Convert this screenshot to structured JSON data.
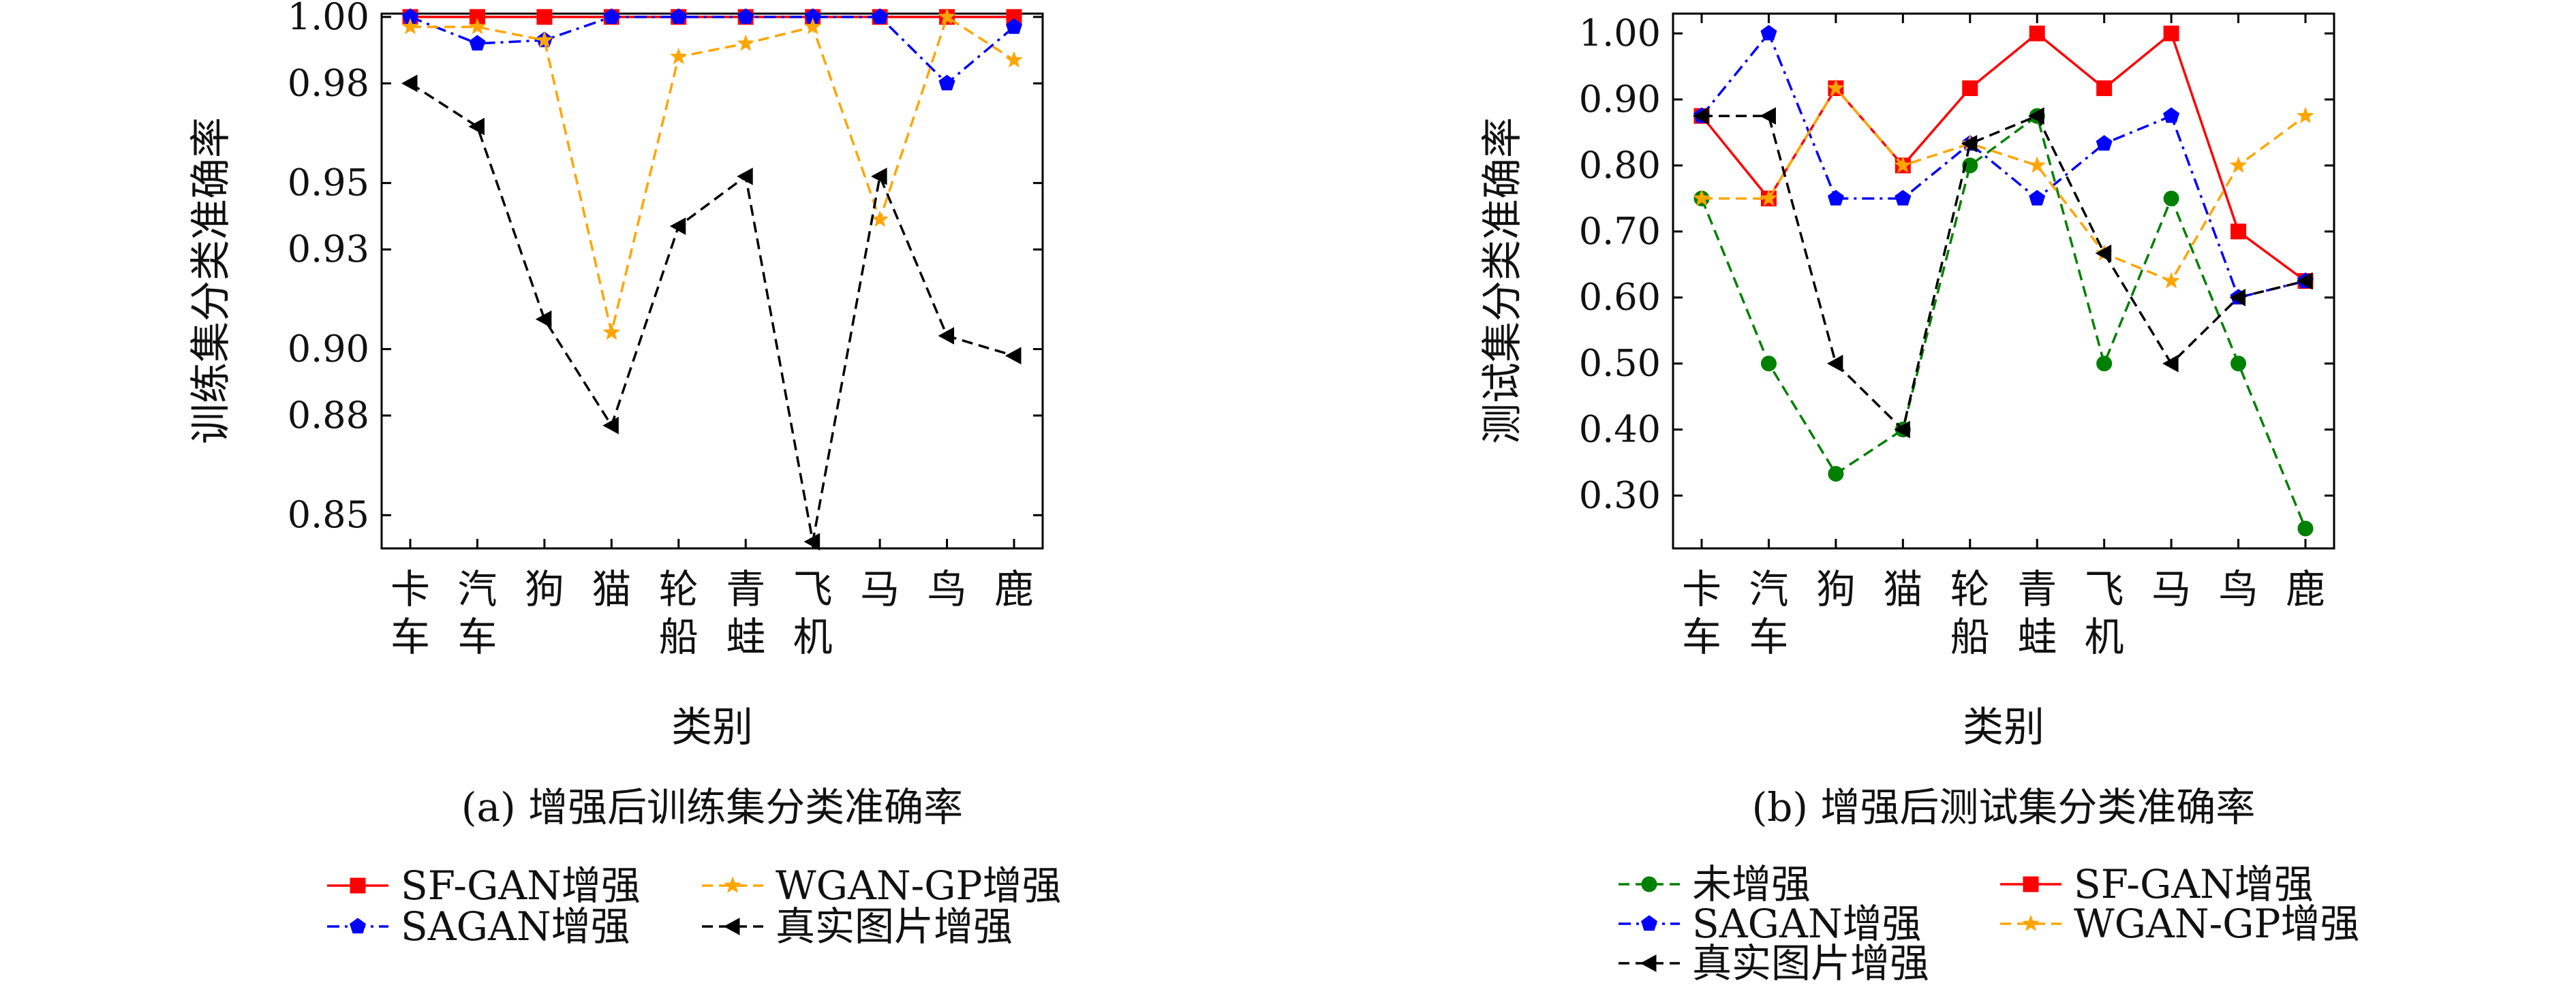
{
  "chart_data": [
    {
      "type": "line",
      "caption": "(a) 增强后训练集分类准确率",
      "xlabel": "类别",
      "ylabel": "训练集分类准确率",
      "categories": [
        "卡车",
        "汽车",
        "狗",
        "猫",
        "轮船",
        "青蛙",
        "飞机",
        "马",
        "鸟",
        "鹿"
      ],
      "ylim": [
        0.84,
        1.001
      ],
      "yticks": [
        0.85,
        0.88,
        0.9,
        0.93,
        0.95,
        0.98,
        1.0
      ],
      "ytick_labels": [
        "0.85",
        "0.88",
        "0.90",
        "0.93",
        "0.95",
        "0.98",
        "1.00"
      ],
      "grid": false,
      "series": [
        {
          "name": "SF-GAN增强",
          "color": "#ff0000",
          "marker": "square",
          "dash": "solid",
          "values": [
            1.0,
            1.0,
            1.0,
            1.0,
            1.0,
            1.0,
            1.0,
            1.0,
            1.0,
            1.0
          ]
        },
        {
          "name": "SAGAN增强",
          "color": "#0000ff",
          "marker": "pentagon",
          "dash": "dashdot",
          "values": [
            1.0,
            0.992,
            0.993,
            1.0,
            1.0,
            1.0,
            1.0,
            1.0,
            0.98,
            0.997
          ]
        },
        {
          "name": "WGAN-GP增强",
          "color": "#ffa500",
          "marker": "star",
          "dash": "dashed",
          "values": [
            0.997,
            0.997,
            0.993,
            0.905,
            0.988,
            0.992,
            0.997,
            0.939,
            1.0,
            0.987
          ]
        },
        {
          "name": "真实图片增强",
          "color": "#000000",
          "marker": "triangle-left",
          "dash": "dashed",
          "values": [
            0.98,
            0.967,
            0.909,
            0.877,
            0.937,
            0.952,
            0.842,
            0.952,
            0.904,
            0.898
          ]
        }
      ],
      "legend": {
        "placement": "bottom",
        "order": [
          "SF-GAN增强",
          "WGAN-GP增强",
          "SAGAN增强",
          "真实图片增强"
        ]
      }
    },
    {
      "type": "line",
      "caption": "(b) 增强后测试集分类准确率",
      "xlabel": "类别",
      "ylabel": "测试集分类准确率",
      "categories": [
        "卡车",
        "汽车",
        "狗",
        "猫",
        "轮船",
        "青蛙",
        "飞机",
        "马",
        "鸟",
        "鹿"
      ],
      "ylim": [
        0.22,
        1.03
      ],
      "yticks": [
        0.3,
        0.4,
        0.5,
        0.6,
        0.7,
        0.8,
        0.9,
        1.0
      ],
      "ytick_labels": [
        "0.30",
        "0.40",
        "0.50",
        "0.60",
        "0.70",
        "0.80",
        "0.90",
        "1.00"
      ],
      "grid": false,
      "series": [
        {
          "name": "未增强",
          "color": "#008000",
          "marker": "circle",
          "dash": "dashed",
          "values": [
            0.75,
            0.5,
            0.333,
            0.4,
            0.8,
            0.875,
            0.5,
            0.75,
            0.5,
            0.25
          ]
        },
        {
          "name": "SF-GAN增强",
          "color": "#ff0000",
          "marker": "square",
          "dash": "solid",
          "values": [
            0.875,
            0.75,
            0.917,
            0.8,
            0.917,
            1.0,
            0.917,
            1.0,
            0.7,
            0.625
          ]
        },
        {
          "name": "SAGAN增强",
          "color": "#0000ff",
          "marker": "pentagon",
          "dash": "dashdot",
          "values": [
            0.875,
            1.0,
            0.75,
            0.75,
            0.833,
            0.75,
            0.833,
            0.875,
            0.6,
            0.625
          ]
        },
        {
          "name": "WGAN-GP增强",
          "color": "#ffa500",
          "marker": "star",
          "dash": "dashed",
          "values": [
            0.75,
            0.75,
            0.917,
            0.8,
            0.833,
            0.8,
            0.667,
            0.625,
            0.8,
            0.875
          ]
        },
        {
          "name": "真实图片增强",
          "color": "#000000",
          "marker": "triangle-left",
          "dash": "dashed",
          "values": [
            0.875,
            0.875,
            0.5,
            0.4,
            0.833,
            0.875,
            0.667,
            0.5,
            0.6,
            0.625
          ]
        }
      ],
      "legend": {
        "placement": "bottom",
        "order": [
          "未增强",
          "SF-GAN增强",
          "SAGAN增强",
          "WGAN-GP增强",
          "真实图片增强"
        ]
      }
    }
  ]
}
